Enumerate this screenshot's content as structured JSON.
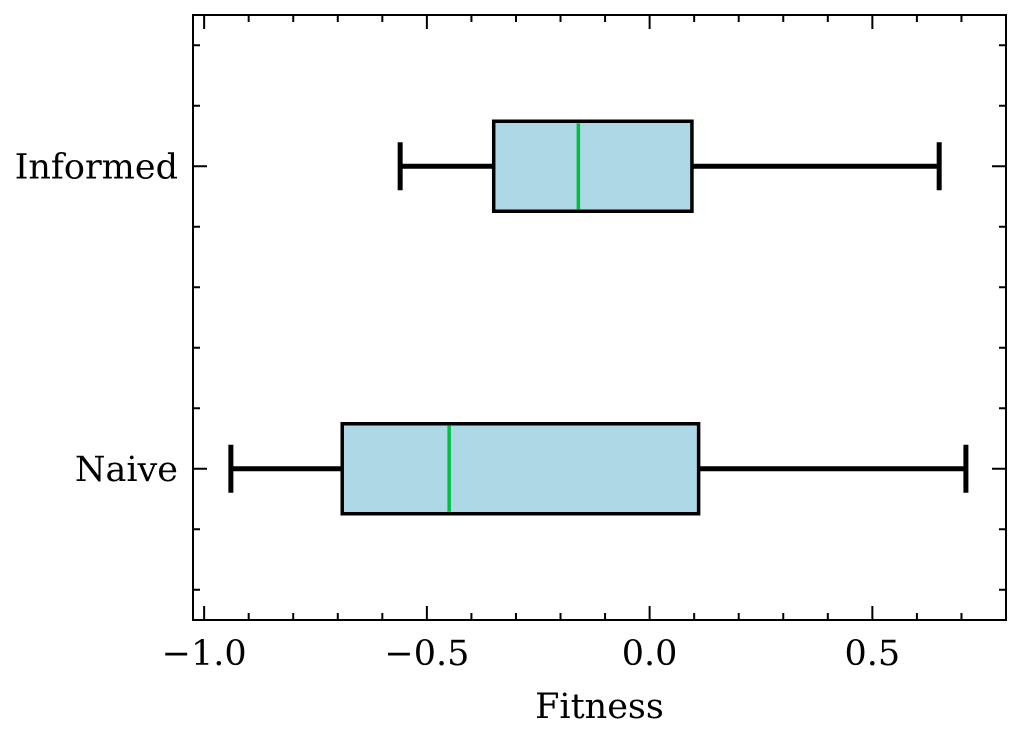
{
  "chart_data": {
    "type": "boxplot",
    "orientation": "horizontal",
    "title": "",
    "xlabel": "Fitness",
    "ylabel": "",
    "xlim": [
      -1.025,
      0.8
    ],
    "x_ticks": [
      -1.0,
      -0.5,
      0.0,
      0.5
    ],
    "x_tick_labels": [
      "−1.0",
      "−0.5",
      "0.0",
      "0.5"
    ],
    "x_minor_step": 0.1,
    "y_minor_step": 0.2,
    "grid": false,
    "categories": [
      "Naive",
      "Informed"
    ],
    "boxes": [
      {
        "label": "Naive",
        "whislo": -0.94,
        "q1": -0.69,
        "median": -0.45,
        "q3": 0.11,
        "whishi": 0.71
      },
      {
        "label": "Informed",
        "whislo": -0.56,
        "q1": -0.35,
        "median": -0.16,
        "q3": 0.095,
        "whishi": 0.65
      }
    ],
    "colors": {
      "box_fill": "#add8e6",
      "box_edge": "#000000",
      "median": "#00c040",
      "whisker": "#000000"
    }
  }
}
